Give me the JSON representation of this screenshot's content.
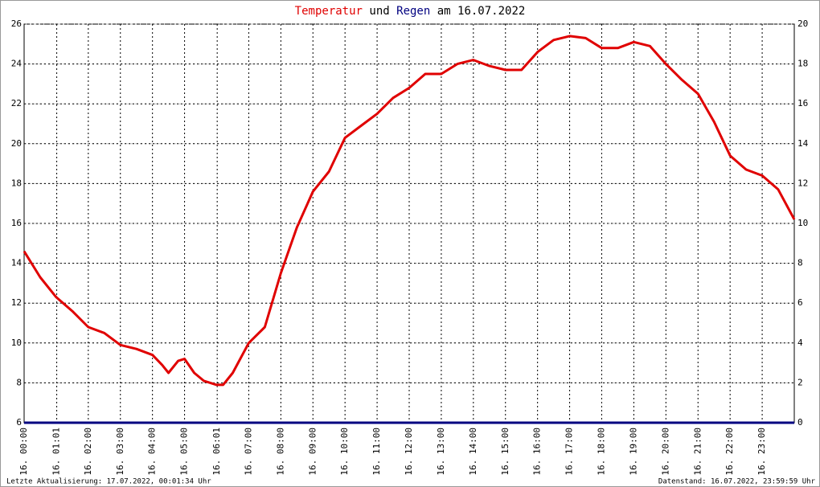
{
  "chart_data": {
    "type": "line",
    "title": [
      "Temperatur",
      "und",
      "Regen",
      "am 16.07.2022"
    ],
    "x": [
      0,
      0.5,
      1,
      1.5,
      2,
      2.5,
      3,
      3.5,
      4,
      4.3,
      4.5,
      4.8,
      5,
      5.3,
      5.6,
      6,
      6.2,
      6.5,
      7,
      7.5,
      8,
      8.5,
      9,
      9.5,
      10,
      10.5,
      11,
      11.5,
      12,
      12.5,
      13,
      13.5,
      14,
      14.5,
      15,
      15.5,
      16,
      16.5,
      17,
      17.5,
      18,
      18.5,
      19,
      19.5,
      20,
      20.5,
      21,
      21.5,
      22,
      22.5,
      23,
      23.5,
      24
    ],
    "series": [
      {
        "name": "Temperatur",
        "color": "#e00000",
        "values": [
          14.6,
          13.3,
          12.3,
          11.6,
          10.8,
          10.5,
          9.9,
          9.7,
          9.4,
          8.9,
          8.5,
          9.1,
          9.2,
          8.5,
          8.1,
          7.9,
          7.9,
          8.5,
          10.0,
          10.8,
          13.5,
          15.8,
          17.6,
          18.6,
          20.3,
          20.9,
          21.5,
          22.3,
          22.8,
          23.5,
          23.5,
          24.0,
          24.2,
          23.9,
          23.7,
          23.7,
          24.6,
          25.2,
          25.4,
          25.3,
          24.8,
          24.8,
          25.1,
          24.9,
          24.0,
          23.2,
          22.5,
          21.1,
          19.4,
          18.7,
          18.4,
          17.7,
          16.2
        ]
      },
      {
        "name": "Regen",
        "color": "#000080",
        "axis": "y2",
        "values": [
          0,
          0,
          0,
          0,
          0,
          0,
          0,
          0,
          0,
          0,
          0,
          0,
          0,
          0,
          0,
          0,
          0,
          0,
          0,
          0,
          0,
          0,
          0,
          0,
          0,
          0,
          0,
          0,
          0,
          0,
          0,
          0,
          0,
          0,
          0,
          0,
          0,
          0,
          0,
          0,
          0,
          0,
          0,
          0,
          0,
          0,
          0,
          0,
          0,
          0,
          0,
          0,
          0
        ]
      }
    ],
    "xlim": [
      0,
      24
    ],
    "xticks": [
      {
        "value": 0,
        "label": "16. 00:00"
      },
      {
        "value": 1.0167,
        "label": "16. 01:01"
      },
      {
        "value": 2,
        "label": "16. 02:00"
      },
      {
        "value": 3,
        "label": "16. 03:00"
      },
      {
        "value": 4,
        "label": "16. 04:00"
      },
      {
        "value": 5,
        "label": "16. 05:00"
      },
      {
        "value": 6.0167,
        "label": "16. 06:01"
      },
      {
        "value": 7,
        "label": "16. 07:00"
      },
      {
        "value": 8,
        "label": "16. 08:00"
      },
      {
        "value": 9,
        "label": "16. 09:00"
      },
      {
        "value": 10,
        "label": "16. 10:00"
      },
      {
        "value": 11,
        "label": "16. 11:00"
      },
      {
        "value": 12,
        "label": "16. 12:00"
      },
      {
        "value": 13,
        "label": "16. 13:00"
      },
      {
        "value": 14,
        "label": "16. 14:00"
      },
      {
        "value": 15,
        "label": "16. 15:00"
      },
      {
        "value": 16,
        "label": "16. 16:00"
      },
      {
        "value": 17,
        "label": "16. 17:00"
      },
      {
        "value": 18,
        "label": "16. 18:00"
      },
      {
        "value": 19,
        "label": "16. 19:00"
      },
      {
        "value": 20,
        "label": "16. 20:00"
      },
      {
        "value": 21,
        "label": "16. 21:00"
      },
      {
        "value": 22,
        "label": "16. 22:00"
      },
      {
        "value": 23,
        "label": "16. 23:00"
      }
    ],
    "ylim": [
      6,
      26
    ],
    "yticks": [
      6,
      8,
      10,
      12,
      14,
      16,
      18,
      20,
      22,
      24,
      26
    ],
    "y2lim": [
      0,
      20
    ],
    "y2ticks": [
      0,
      2,
      4,
      6,
      8,
      10,
      12,
      14,
      16,
      18,
      20
    ],
    "y2color": "#00cc00",
    "grid": true
  },
  "footer": [
    "Letzte Aktualisierung: 17.07.2022, 00:01:34 Uhr",
    "Datenstand: 16.07.2022, 23:59:59 Uhr"
  ]
}
